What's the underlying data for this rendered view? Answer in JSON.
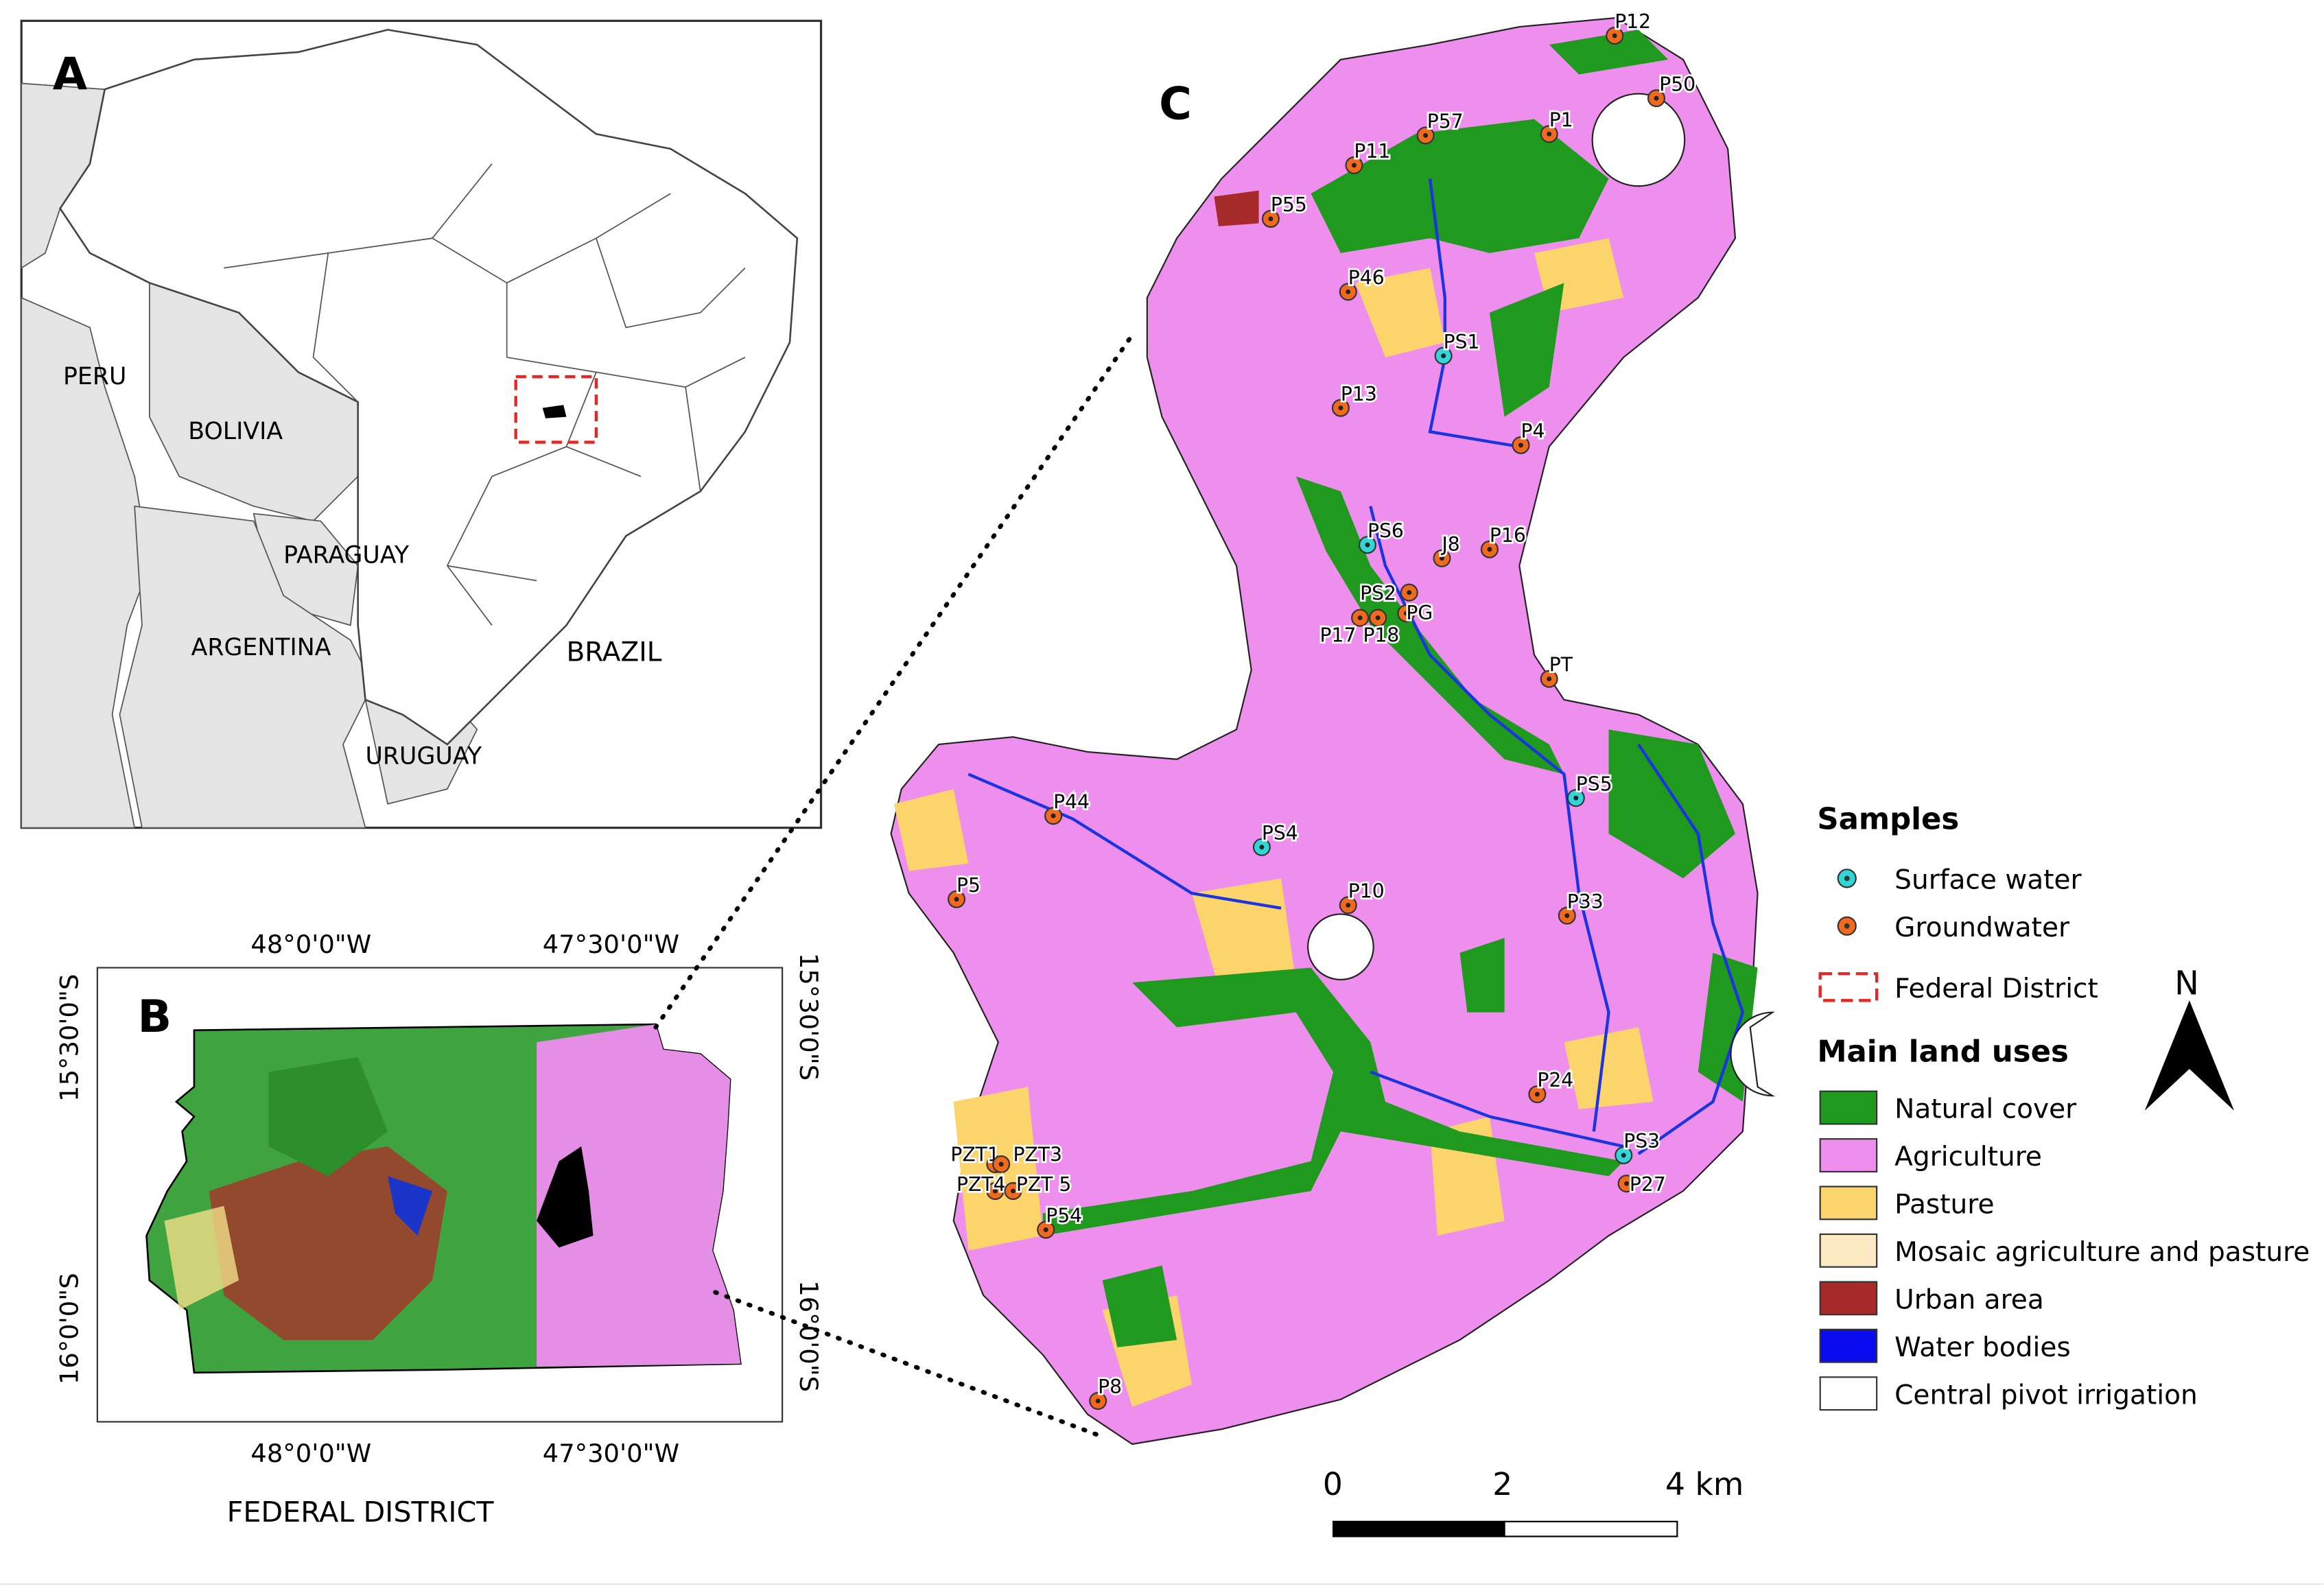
{
  "panels": {
    "a": "A",
    "b": "B",
    "c": "C"
  },
  "panel_a": {
    "countries": [
      "PERU",
      "BOLIVIA",
      "PARAGUAY",
      "ARGENTINA",
      "BRAZIL",
      "URUGUAY"
    ]
  },
  "panel_b": {
    "title": "FEDERAL DISTRICT",
    "lon_labels": [
      "48°0'0\"W",
      "47°30'0\"W"
    ],
    "lat_labels": [
      "15°30'0\"S",
      "16°0'0\"S"
    ]
  },
  "panel_c": {
    "points": [
      {
        "id": "P12",
        "type": "groundwater"
      },
      {
        "id": "P50",
        "type": "groundwater"
      },
      {
        "id": "P57",
        "type": "groundwater"
      },
      {
        "id": "P1",
        "type": "groundwater"
      },
      {
        "id": "P11",
        "type": "groundwater"
      },
      {
        "id": "P55",
        "type": "groundwater"
      },
      {
        "id": "P46",
        "type": "groundwater"
      },
      {
        "id": "PS1",
        "type": "surface"
      },
      {
        "id": "P13",
        "type": "groundwater"
      },
      {
        "id": "P4",
        "type": "groundwater"
      },
      {
        "id": "PS6",
        "type": "surface"
      },
      {
        "id": "J8",
        "type": "groundwater"
      },
      {
        "id": "P16",
        "type": "groundwater"
      },
      {
        "id": "PS2",
        "type": "groundwater"
      },
      {
        "id": "PG",
        "type": "groundwater"
      },
      {
        "id": "P17",
        "type": "groundwater"
      },
      {
        "id": "P18",
        "type": "groundwater"
      },
      {
        "id": "PT",
        "type": "groundwater"
      },
      {
        "id": "PS5",
        "type": "surface"
      },
      {
        "id": "P44",
        "type": "groundwater"
      },
      {
        "id": "PS4",
        "type": "surface"
      },
      {
        "id": "P5",
        "type": "groundwater"
      },
      {
        "id": "P10",
        "type": "groundwater"
      },
      {
        "id": "P33",
        "type": "groundwater"
      },
      {
        "id": "P24",
        "type": "groundwater"
      },
      {
        "id": "PS3",
        "type": "surface"
      },
      {
        "id": "P27",
        "type": "groundwater"
      },
      {
        "id": "PZT1",
        "type": "groundwater"
      },
      {
        "id": "PZT3",
        "type": "groundwater"
      },
      {
        "id": "PZT4",
        "type": "groundwater"
      },
      {
        "id": "PZT 5",
        "type": "groundwater"
      },
      {
        "id": "P54",
        "type": "groundwater"
      },
      {
        "id": "P8",
        "type": "groundwater"
      }
    ],
    "scale": {
      "labels": [
        "0",
        "2",
        "4 km"
      ]
    },
    "north": "N"
  },
  "legend": {
    "samples_title": "Samples",
    "samples": [
      {
        "label": "Surface water",
        "color": "#33d6d6"
      },
      {
        "label": "Groundwater",
        "color": "#f06a1e"
      },
      {
        "label": "Federal District",
        "color": "#e8261f"
      }
    ],
    "landuse_title": "Main land uses",
    "landuse": [
      {
        "label": "Natural cover",
        "color": "#1f9a1f"
      },
      {
        "label": "Agriculture",
        "color": "#ee8fee"
      },
      {
        "label": "Pasture",
        "color": "#fbd46b"
      },
      {
        "label": "Mosaic agriculture and pasture",
        "color": "#fdeac4"
      },
      {
        "label": "Urban area",
        "color": "#a72a2a"
      },
      {
        "label": "Water bodies",
        "color": "#0b0bf0"
      },
      {
        "label": "Central pivot irrigation",
        "color": "#ffffff"
      }
    ]
  }
}
